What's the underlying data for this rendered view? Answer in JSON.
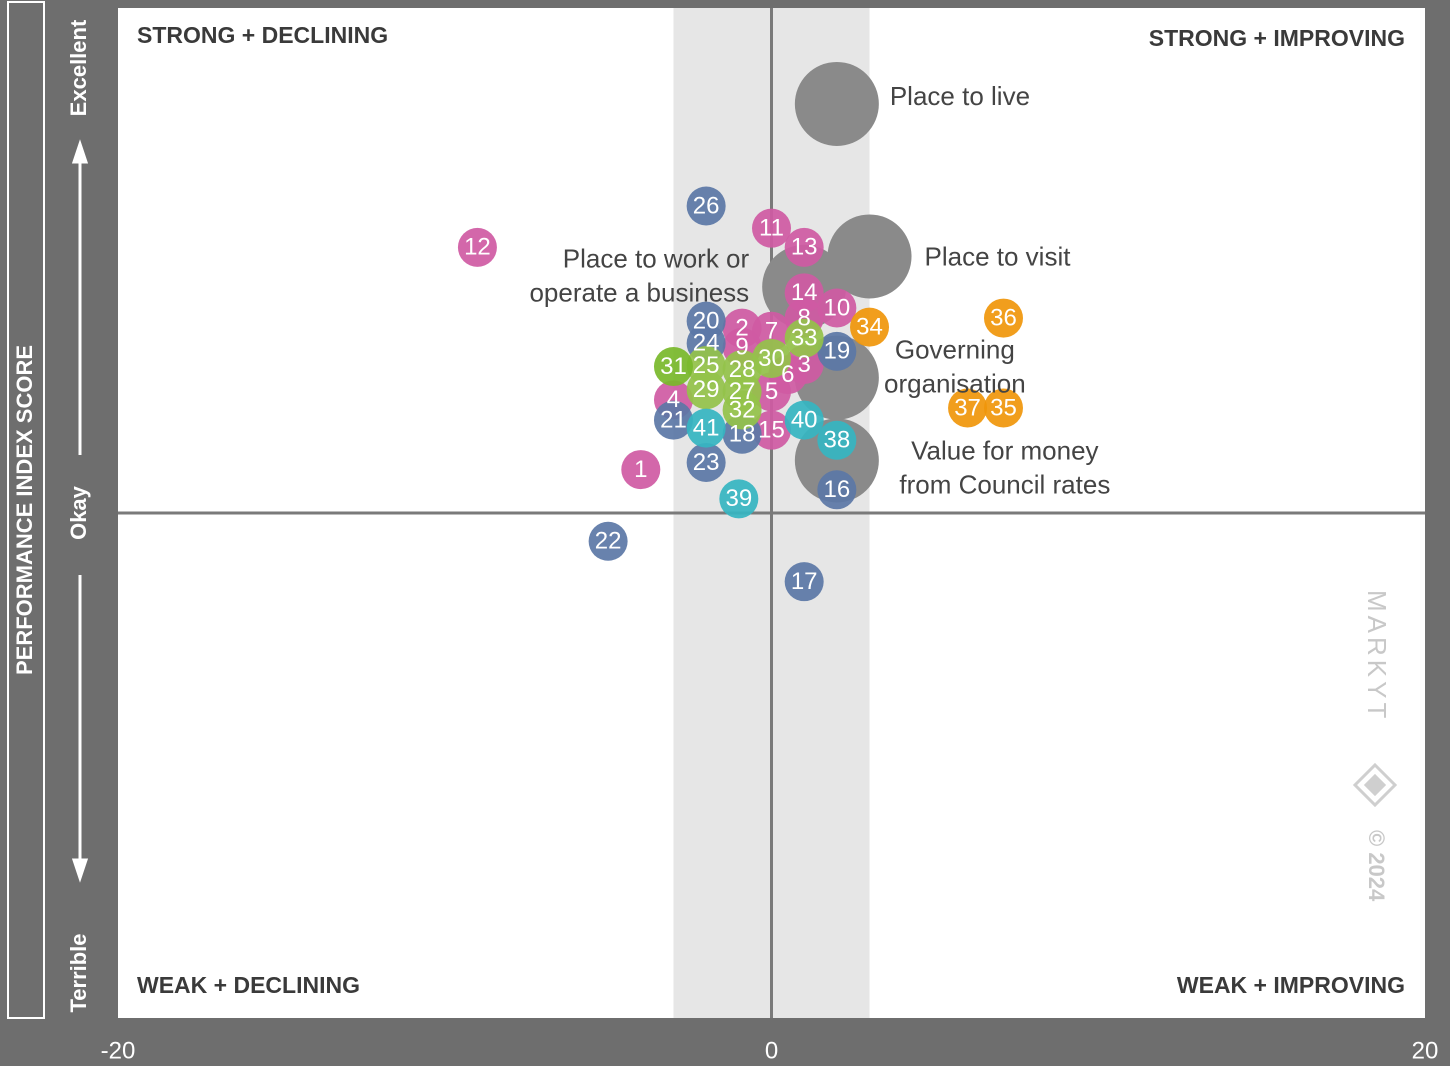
{
  "chart_data": {
    "type": "bubble",
    "y_axis_label": "PERFORMANCE INDEX SCORE",
    "xlim": [
      -20,
      20
    ],
    "xticks": [
      -20,
      0,
      20
    ],
    "ylim": [
      0,
      100
    ],
    "yticks": [
      {
        "value": 0,
        "label": "Terrible"
      },
      {
        "value": 50,
        "label": "Okay"
      },
      {
        "value": 100,
        "label": "Excellent"
      }
    ],
    "neutral_band": [
      -3,
      3
    ],
    "quadrant_labels": {
      "top_left": "STRONG + DECLINING",
      "top_right": "STRONG + IMPROVING",
      "bottom_left": "WEAK + DECLINING",
      "bottom_right": "WEAK + IMPROVING"
    },
    "watermark": [
      "MARKYT",
      "© 2024"
    ],
    "overall": {
      "color": "#8a8a8a",
      "labels": [
        [
          "Place to live"
        ],
        [
          "Place to visit"
        ],
        [
          "Place to work or",
          "operate a business"
        ],
        [
          "Governing",
          "organisation"
        ],
        [
          "Value for money",
          "from Council rates"
        ]
      ],
      "x": [
        2.0,
        3.0,
        1.0,
        2.0,
        2.0
      ],
      "values": [
        90.5,
        75.4,
        72.4,
        63.4,
        55.2
      ]
    },
    "series": [
      {
        "color": "#cf5aa3",
        "labels": [
          "1",
          "2",
          "3",
          "4",
          "5",
          "6",
          "7",
          "8",
          "9",
          "10",
          "11",
          "12",
          "13",
          "14",
          "15"
        ],
        "x": [
          -4.0,
          -0.9,
          1.0,
          -3.0,
          0.0,
          0.5,
          0.0,
          1.0,
          -0.9,
          2.0,
          0.0,
          -9.0,
          1.0,
          1.0,
          0.0
        ],
        "values": [
          54.3,
          68.3,
          64.7,
          61.2,
          62.0,
          63.7,
          68.0,
          69.3,
          66.4,
          70.3,
          78.2,
          76.3,
          76.3,
          71.8,
          58.2
        ]
      },
      {
        "color": "#5b77a6",
        "labels": [
          "16",
          "17",
          "18",
          "19",
          "20",
          "21",
          "22",
          "23",
          "24",
          "26"
        ],
        "x": [
          2.0,
          1.0,
          -0.9,
          2.0,
          -2.0,
          -3.0,
          -5.0,
          -2.0,
          -2.0,
          -2.0
        ],
        "values": [
          52.3,
          43.2,
          57.8,
          66.0,
          69.0,
          59.2,
          47.2,
          55.0,
          66.8,
          80.4
        ]
      },
      {
        "color": "#94c24a",
        "labels": [
          "25",
          "27",
          "28",
          "29",
          "30",
          "32",
          "33"
        ],
        "x": [
          -2.0,
          -0.9,
          -0.9,
          -2.0,
          0.0,
          -0.9,
          1.0
        ],
        "values": [
          64.6,
          62.0,
          64.2,
          62.2,
          65.3,
          60.2,
          67.3
        ]
      },
      {
        "color": "#78b82a",
        "labels": [
          "31"
        ],
        "x": [
          -3.0
        ],
        "values": [
          64.5
        ]
      },
      {
        "color": "#f0960a",
        "labels": [
          "34",
          "35",
          "36",
          "37"
        ],
        "x": [
          3.0,
          7.1,
          7.1,
          6.0
        ],
        "values": [
          68.4,
          60.4,
          69.3,
          60.4
        ]
      },
      {
        "color": "#35b5c1",
        "labels": [
          "38",
          "39",
          "40",
          "41"
        ],
        "x": [
          2.0,
          -1.0,
          1.0,
          -2.0
        ],
        "values": [
          57.2,
          51.4,
          59.2,
          58.4
        ]
      }
    ]
  }
}
